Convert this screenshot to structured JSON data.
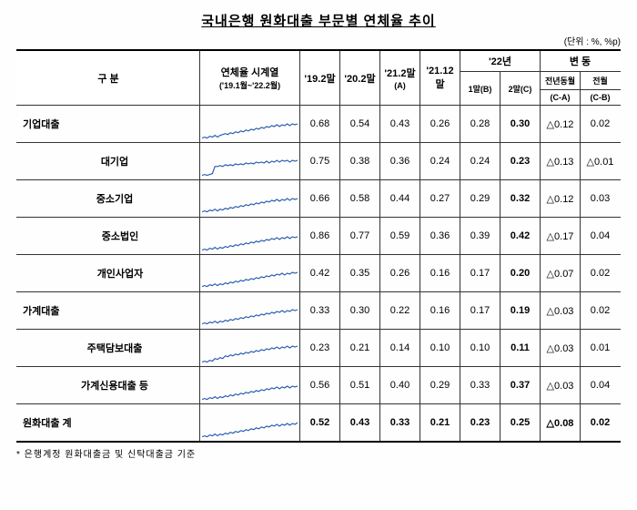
{
  "title": "국내은행 원화대출 부문별 연체율 추이",
  "unit": "(단위 : %, %p)",
  "footnote": "* 은행계정 원화대출금 및 신탁대출금 기준",
  "columns": {
    "category": "구 분",
    "series": "연체율 시계열",
    "seriesSub": "('19.1월~'22.2월)",
    "c1": "'19.2말",
    "c2": "'20.2말",
    "c3": "'21.2말",
    "c3sub": "(A)",
    "c4": "'21.12말",
    "yearGroup": "'22년",
    "c5": "1말(B)",
    "c6": "2말(C)",
    "changeGroup": "변 동",
    "c7a": "전년동월",
    "c7b": "(C-A)",
    "c8a": "전월",
    "c8b": "(C-B)"
  },
  "sparkColor": "#2a5cae",
  "sparkPoints": [
    [
      34,
      33,
      34,
      32,
      33,
      31,
      33,
      31,
      30,
      29,
      30,
      28,
      29,
      27,
      28,
      26,
      27,
      25,
      26,
      24,
      25,
      23,
      24,
      22,
      23,
      21,
      22,
      20,
      21,
      19,
      21,
      19,
      20,
      18,
      20,
      18,
      19,
      18
    ],
    [
      34,
      33,
      34,
      33,
      32,
      24,
      24,
      23,
      24,
      22,
      23,
      22,
      23,
      21,
      22,
      21,
      22,
      20,
      21,
      20,
      21,
      19,
      20,
      19,
      20,
      18,
      20,
      18,
      19,
      17,
      19,
      17,
      18,
      17,
      19,
      17,
      18,
      17
    ],
    [
      33,
      32,
      33,
      31,
      32,
      30,
      32,
      30,
      31,
      29,
      30,
      28,
      29,
      27,
      28,
      26,
      27,
      25,
      26,
      24,
      25,
      23,
      24,
      22,
      23,
      21,
      22,
      20,
      21,
      19,
      21,
      19,
      20,
      18,
      20,
      18,
      19,
      18
    ],
    [
      34,
      33,
      34,
      32,
      33,
      31,
      33,
      31,
      32,
      30,
      31,
      29,
      30,
      28,
      29,
      27,
      28,
      26,
      27,
      25,
      26,
      24,
      25,
      23,
      24,
      22,
      23,
      21,
      22,
      20,
      22,
      20,
      21,
      19,
      21,
      19,
      20,
      19
    ],
    [
      33,
      32,
      33,
      31,
      32,
      30,
      32,
      30,
      31,
      29,
      30,
      28,
      29,
      27,
      28,
      26,
      27,
      25,
      26,
      24,
      25,
      23,
      24,
      22,
      23,
      21,
      22,
      20,
      21,
      19,
      20,
      18,
      20,
      18,
      19,
      17,
      18,
      17
    ],
    [
      33,
      32,
      33,
      31,
      32,
      30,
      32,
      30,
      31,
      29,
      30,
      28,
      29,
      27,
      28,
      26,
      27,
      25,
      26,
      24,
      25,
      23,
      24,
      22,
      23,
      21,
      22,
      20,
      21,
      19,
      20,
      18,
      20,
      18,
      19,
      17,
      18,
      17
    ],
    [
      34,
      33,
      34,
      32,
      33,
      30,
      31,
      29,
      30,
      27,
      28,
      26,
      27,
      25,
      26,
      24,
      25,
      23,
      24,
      22,
      23,
      21,
      22,
      20,
      21,
      19,
      20,
      18,
      19,
      17,
      19,
      17,
      18,
      16,
      18,
      16,
      17,
      16
    ],
    [
      34,
      33,
      34,
      32,
      33,
      31,
      33,
      31,
      32,
      30,
      31,
      29,
      30,
      28,
      29,
      27,
      28,
      26,
      27,
      25,
      26,
      24,
      25,
      23,
      24,
      22,
      23,
      21,
      22,
      20,
      22,
      20,
      21,
      19,
      21,
      19,
      20,
      19
    ],
    [
      34,
      33,
      34,
      32,
      33,
      31,
      33,
      31,
      32,
      30,
      31,
      29,
      30,
      28,
      29,
      27,
      28,
      26,
      27,
      25,
      26,
      24,
      25,
      23,
      24,
      22,
      23,
      21,
      22,
      20,
      22,
      20,
      21,
      19,
      21,
      19,
      20,
      18
    ]
  ],
  "rows": [
    {
      "label": "기업대출",
      "indent": 0,
      "spark": 0,
      "vals": [
        "0.68",
        "0.54",
        "0.43",
        "0.26",
        "0.28",
        "0.30"
      ],
      "bold6": true,
      "chg": [
        "0.12",
        "0.02"
      ],
      "tri": [
        true,
        false
      ]
    },
    {
      "label": "대기업",
      "indent": 1,
      "spark": 1,
      "vals": [
        "0.75",
        "0.38",
        "0.36",
        "0.24",
        "0.24",
        "0.23"
      ],
      "bold6": true,
      "chg": [
        "0.13",
        "0.01"
      ],
      "tri": [
        true,
        true
      ]
    },
    {
      "label": "중소기업",
      "indent": 1,
      "spark": 2,
      "vals": [
        "0.66",
        "0.58",
        "0.44",
        "0.27",
        "0.29",
        "0.32"
      ],
      "bold6": true,
      "chg": [
        "0.12",
        "0.03"
      ],
      "tri": [
        true,
        false
      ]
    },
    {
      "label": "중소법인",
      "indent": 2,
      "spark": 3,
      "vals": [
        "0.86",
        "0.77",
        "0.59",
        "0.36",
        "0.39",
        "0.42"
      ],
      "bold6": true,
      "chg": [
        "0.17",
        "0.04"
      ],
      "tri": [
        true,
        false
      ]
    },
    {
      "label": "개인사업자",
      "indent": 2,
      "spark": 4,
      "vals": [
        "0.42",
        "0.35",
        "0.26",
        "0.16",
        "0.17",
        "0.20"
      ],
      "bold6": true,
      "chg": [
        "0.07",
        "0.02"
      ],
      "tri": [
        true,
        false
      ]
    },
    {
      "label": "가계대출",
      "indent": 0,
      "spark": 5,
      "vals": [
        "0.33",
        "0.30",
        "0.22",
        "0.16",
        "0.17",
        "0.19"
      ],
      "bold6": true,
      "chg": [
        "0.03",
        "0.02"
      ],
      "tri": [
        true,
        false
      ]
    },
    {
      "label": "주택담보대출",
      "indent": 1,
      "spark": 6,
      "vals": [
        "0.23",
        "0.21",
        "0.14",
        "0.10",
        "0.10",
        "0.11"
      ],
      "bold6": true,
      "chg": [
        "0.03",
        "0.01"
      ],
      "tri": [
        true,
        false
      ]
    },
    {
      "label": "가계신용대출 등",
      "indent": 1,
      "spark": 7,
      "vals": [
        "0.56",
        "0.51",
        "0.40",
        "0.29",
        "0.33",
        "0.37"
      ],
      "bold6": true,
      "chg": [
        "0.03",
        "0.04"
      ],
      "tri": [
        true,
        false
      ]
    },
    {
      "label": "원화대출 계",
      "indent": 0,
      "spark": 8,
      "vals": [
        "0.52",
        "0.43",
        "0.33",
        "0.21",
        "0.23",
        "0.25"
      ],
      "boldAll": true,
      "chg": [
        "0.08",
        "0.02"
      ],
      "tri": [
        true,
        false
      ],
      "boldChg": true
    }
  ]
}
